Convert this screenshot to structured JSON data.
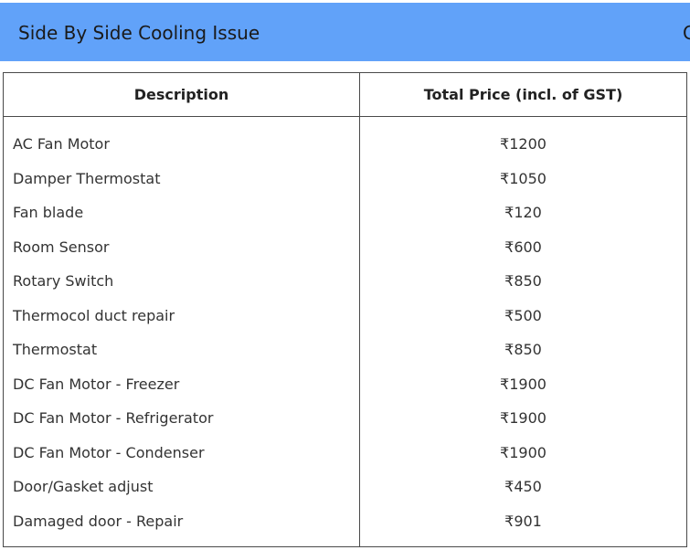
{
  "header": {
    "title": "Side By Side Cooling Issue",
    "edge_text": "C"
  },
  "table": {
    "columns": [
      "Description",
      "Total Price (incl. of GST)"
    ],
    "rows": [
      {
        "description": "AC Fan Motor",
        "price": "₹1200"
      },
      {
        "description": "Damper Thermostat",
        "price": "₹1050"
      },
      {
        "description": "Fan blade",
        "price": "₹120"
      },
      {
        "description": "Room Sensor",
        "price": "₹600"
      },
      {
        "description": "Rotary Switch",
        "price": "₹850"
      },
      {
        "description": "Thermocol duct repair",
        "price": "₹500"
      },
      {
        "description": "Thermostat",
        "price": "₹850"
      },
      {
        "description": "DC Fan Motor - Freezer",
        "price": "₹1900"
      },
      {
        "description": "DC Fan Motor - Refrigerator",
        "price": "₹1900"
      },
      {
        "description": "DC Fan Motor - Condenser",
        "price": "₹1900"
      },
      {
        "description": "Door/Gasket adjust",
        "price": "₹450"
      },
      {
        "description": "Damaged door - Repair",
        "price": "₹901"
      }
    ]
  },
  "colors": {
    "header_bg": "#61a2f9",
    "border": "#4a4a4a",
    "text": "#333333"
  }
}
